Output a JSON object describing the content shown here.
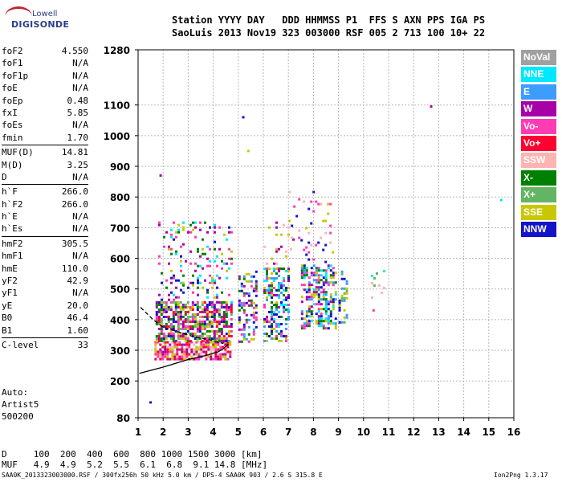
{
  "logo": {
    "top": "Lowell",
    "main": "DIGISONDE"
  },
  "header": {
    "line1": "Station YYYY DAY   DDD HHMMSS P1  FFS S AXN PPS IGA PS",
    "line2": "SaoLuis 2013 Nov19 323 003000 RSF 005 2 713 100 10+ 22"
  },
  "params": [
    [
      {
        "name": "foF2",
        "value": "4.550"
      },
      {
        "name": "foF1",
        "value": "N/A"
      },
      {
        "name": "foF1p",
        "value": "N/A"
      },
      {
        "name": "foE",
        "value": "N/A"
      },
      {
        "name": "foEp",
        "value": "0.48"
      },
      {
        "name": "fxI",
        "value": "5.85"
      },
      {
        "name": "foEs",
        "value": "N/A"
      },
      {
        "name": "fmin",
        "value": "1.70"
      }
    ],
    [
      {
        "name": "MUF(D)",
        "value": "14.81"
      },
      {
        "name": "M(D)",
        "value": "3.25"
      },
      {
        "name": "D",
        "value": "N/A"
      }
    ],
    [
      {
        "name": "h`F",
        "value": "266.0"
      },
      {
        "name": "h`F2",
        "value": "266.0"
      },
      {
        "name": "h`E",
        "value": "N/A"
      },
      {
        "name": "h`Es",
        "value": "N/A"
      }
    ],
    [
      {
        "name": "hmF2",
        "value": "305.5"
      },
      {
        "name": "hmF1",
        "value": "N/A"
      },
      {
        "name": "hmE",
        "value": "110.0"
      },
      {
        "name": "yF2",
        "value": "42.9"
      },
      {
        "name": "yF1",
        "value": "N/A"
      },
      {
        "name": "yE",
        "value": "20.0"
      },
      {
        "name": "B0",
        "value": "46.4"
      },
      {
        "name": "B1",
        "value": "1.60"
      }
    ],
    [
      {
        "name": "C-level",
        "value": "33"
      }
    ]
  ],
  "auto": [
    "Auto:",
    "Artist5",
    "500200"
  ],
  "legend": [
    {
      "label": "NoVal",
      "color": "#a0a0a0"
    },
    {
      "label": "NNE",
      "color": "#00e8ff"
    },
    {
      "label": "E",
      "color": "#3c9cff"
    },
    {
      "label": "W",
      "color": "#a800a8"
    },
    {
      "label": "Vo-",
      "color": "#ff3cb4"
    },
    {
      "label": "Vo+",
      "color": "#ff0030"
    },
    {
      "label": "SSW",
      "color": "#ffb4b4"
    },
    {
      "label": "X-",
      "color": "#008000"
    },
    {
      "label": "X+",
      "color": "#64b464"
    },
    {
      "label": "SSE",
      "color": "#c8c800"
    },
    {
      "label": "NNW",
      "color": "#1414c8"
    }
  ],
  "muf_table": {
    "line1": "D     100  200  400  600  800 1000 1500 3000 [km]",
    "line2": "MUF   4.9  4.9  5.2  5.5  6.1  6.8  9.1 14.8 [MHz]"
  },
  "footer": {
    "left": "SAA0K_2013323003000.RSF / 300fx256h 50 kHz 5.0 km / DPS-4 SAA0K 903 / 2.6 S 315.8 E",
    "right": "Ion2Png 1.3.17"
  },
  "chart_data": {
    "type": "scatter",
    "title": "",
    "xlabel": "",
    "ylabel": "",
    "xlim": [
      1,
      16
    ],
    "ylim": [
      80,
      1280
    ],
    "x_ticks": [
      1,
      2,
      3,
      4,
      5,
      6,
      7,
      8,
      9,
      10,
      11,
      12,
      13,
      14,
      15,
      16
    ],
    "y_ticks": [
      80,
      200,
      300,
      400,
      500,
      600,
      700,
      800,
      900,
      1000,
      1100,
      1280
    ],
    "grid": true,
    "clusters": [
      {
        "x": [
          1.65,
          4.7
        ],
        "y": [
          270,
          330
        ],
        "density": 1.4,
        "colors": [
          "#a800a8",
          "#ff3cb4",
          "#ff0030",
          "#ffb4b4",
          "#c8c800"
        ]
      },
      {
        "x": [
          1.7,
          4.75
        ],
        "y": [
          330,
          460
        ],
        "density": 1.2,
        "colors": [
          "#a800a8",
          "#ff3cb4",
          "#ff0030",
          "#c8c800",
          "#64b464",
          "#008000",
          "#1414c8"
        ]
      },
      {
        "x": [
          1.8,
          4.7
        ],
        "y": [
          460,
          720
        ],
        "density": 0.25,
        "colors": [
          "#a800a8",
          "#1414c8",
          "#c8c800",
          "#008000",
          "#ff3cb4",
          "#00e8ff"
        ]
      },
      {
        "x": [
          5.0,
          5.7
        ],
        "y": [
          330,
          560
        ],
        "density": 0.7,
        "colors": [
          "#c8c800",
          "#a800a8",
          "#ff3cb4",
          "#1414c8",
          "#008000",
          "#3c9cff"
        ]
      },
      {
        "x": [
          6.0,
          7.0
        ],
        "y": [
          330,
          570
        ],
        "density": 0.85,
        "colors": [
          "#1414c8",
          "#3c9cff",
          "#00e8ff",
          "#a800a8",
          "#ff3cb4",
          "#c8c800",
          "#008000"
        ]
      },
      {
        "x": [
          7.5,
          8.9
        ],
        "y": [
          370,
          580
        ],
        "density": 0.9,
        "colors": [
          "#1414c8",
          "#3c9cff",
          "#00e8ff",
          "#ff3cb4",
          "#c8c800",
          "#008000",
          "#a800a8"
        ]
      },
      {
        "x": [
          9.0,
          9.3
        ],
        "y": [
          390,
          560
        ],
        "density": 0.5,
        "colors": [
          "#3c9cff",
          "#c8c800",
          "#1414c8",
          "#64b464"
        ]
      },
      {
        "x": [
          6.0,
          7.2
        ],
        "y": [
          580,
          720
        ],
        "density": 0.15,
        "colors": [
          "#ffb4b4",
          "#c8c800",
          "#a800a8"
        ]
      },
      {
        "x": [
          7.0,
          8.8
        ],
        "y": [
          580,
          820
        ],
        "density": 0.12,
        "colors": [
          "#ffb4b4",
          "#ff3cb4",
          "#c8c800",
          "#1414c8"
        ]
      },
      {
        "x": [
          10.2,
          10.9
        ],
        "y": [
          470,
          570
        ],
        "density": 0.12,
        "colors": [
          "#a800a8",
          "#00e8ff",
          "#ffb4b4",
          "#64b464"
        ]
      }
    ],
    "traces": [
      {
        "x": [
          1.05,
          2.0,
          3.0,
          3.8,
          4.2,
          4.4,
          4.6
        ],
        "y": [
          225,
          245,
          270,
          285,
          295,
          305,
          320
        ],
        "color": "#000000"
      },
      {
        "x": [
          1.1,
          1.6,
          2.0,
          2.6,
          3.2,
          3.8,
          4.4
        ],
        "y": [
          440,
          400,
          375,
          360,
          345,
          335,
          322
        ],
        "color": "#000000",
        "dash": true
      }
    ],
    "isolated_points": [
      {
        "x": 1.5,
        "y": 130,
        "color": "#1414c8"
      },
      {
        "x": 1.9,
        "y": 870,
        "color": "#a800a8"
      },
      {
        "x": 5.2,
        "y": 1060,
        "color": "#1414c8"
      },
      {
        "x": 12.7,
        "y": 1095,
        "color": "#a800a8"
      },
      {
        "x": 15.5,
        "y": 790,
        "color": "#00e8ff"
      },
      {
        "x": 10.4,
        "y": 430,
        "color": "#ff3cb4"
      },
      {
        "x": 5.4,
        "y": 950,
        "color": "#c8c800"
      }
    ]
  }
}
